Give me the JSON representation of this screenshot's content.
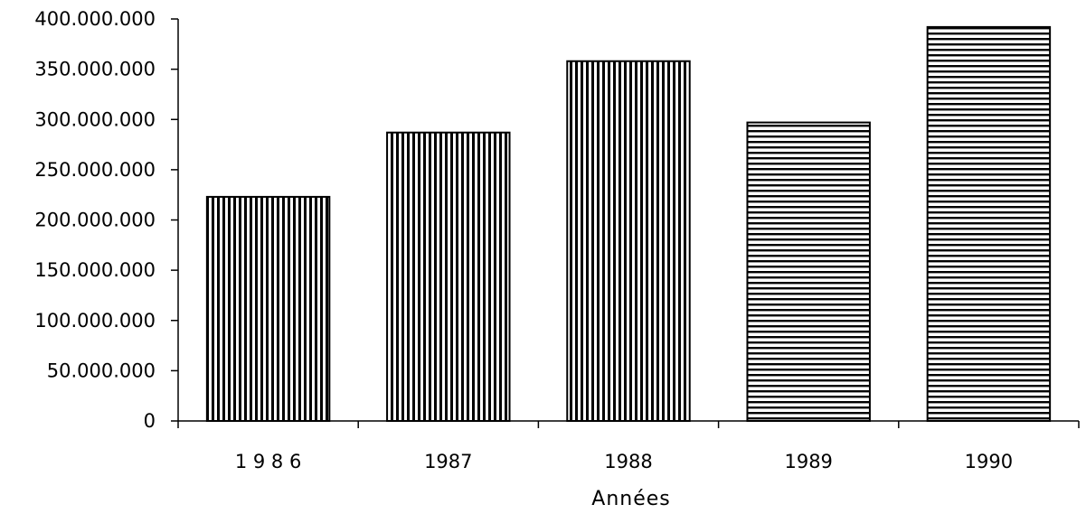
{
  "chart_data": {
    "type": "bar",
    "categories": [
      "1 9 8 6",
      "1987",
      "1988",
      "1989",
      "1990"
    ],
    "values": [
      223000000,
      287000000,
      358000000,
      297000000,
      392000000
    ],
    "patterns": [
      "vertical",
      "vertical",
      "vertical",
      "horizontal",
      "horizontal"
    ],
    "title": "",
    "xlabel": "Années",
    "ylabel": "",
    "ylim": [
      0,
      400000000
    ],
    "yticks": [
      0,
      50000000,
      100000000,
      150000000,
      200000000,
      250000000,
      300000000,
      350000000,
      400000000
    ],
    "ytick_labels": [
      "0",
      "50.000.000",
      "100.000.000",
      "150.000.000",
      "200.000.000",
      "250.000.000",
      "300.000.000",
      "350.000.000",
      "400.000.000"
    ],
    "grid": false,
    "legend": "none",
    "colors": {
      "bar_stroke": "#000000",
      "background": "#ffffff"
    }
  }
}
